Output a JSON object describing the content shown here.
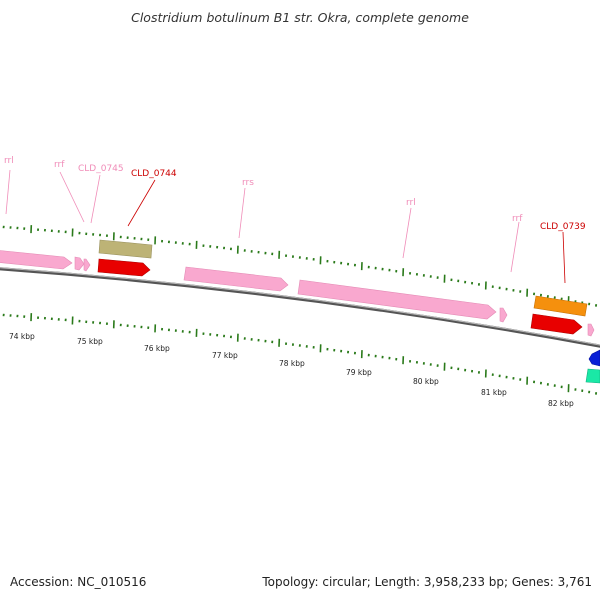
{
  "title": "Clostridium botulinum B1 str. Okra, complete genome",
  "footer": {
    "accession": "Accession: NC_010516",
    "topology": "Topology: circular; Length: 3,958,233 bp; Genes: 3,761"
  },
  "colors": {
    "rRNA": "#f9a8cf",
    "gene_red": "#e80000",
    "gene_olive": "#bdb376",
    "gene_orange": "#f5900d",
    "gene_blue": "#0a1fd6",
    "gene_teal": "#1ae8a6",
    "tick": "#2a7a1a",
    "backbone": "#777777",
    "label_red": "#cc0000",
    "label_pink": "#f08cb8"
  },
  "labels": [
    {
      "id": "rrl-1",
      "text": "rrl",
      "color": "pink"
    },
    {
      "id": "rrf-1",
      "text": "rrf",
      "color": "pink"
    },
    {
      "id": "cld0745",
      "text": "CLD_0745",
      "color": "pink"
    },
    {
      "id": "cld0744",
      "text": "CLD_0744",
      "color": "red"
    },
    {
      "id": "rrs",
      "text": "rrs",
      "color": "pink"
    },
    {
      "id": "rrl-2",
      "text": "rrl",
      "color": "pink"
    },
    {
      "id": "rrf-2",
      "text": "rrf",
      "color": "pink"
    },
    {
      "id": "cld0739",
      "text": "CLD_0739",
      "color": "red"
    }
  ],
  "kbp_labels": [
    "74 kbp",
    "75 kbp",
    "76 kbp",
    "77 kbp",
    "78 kbp",
    "79 kbp",
    "80 kbp",
    "81 kbp",
    "82 kbp"
  ]
}
